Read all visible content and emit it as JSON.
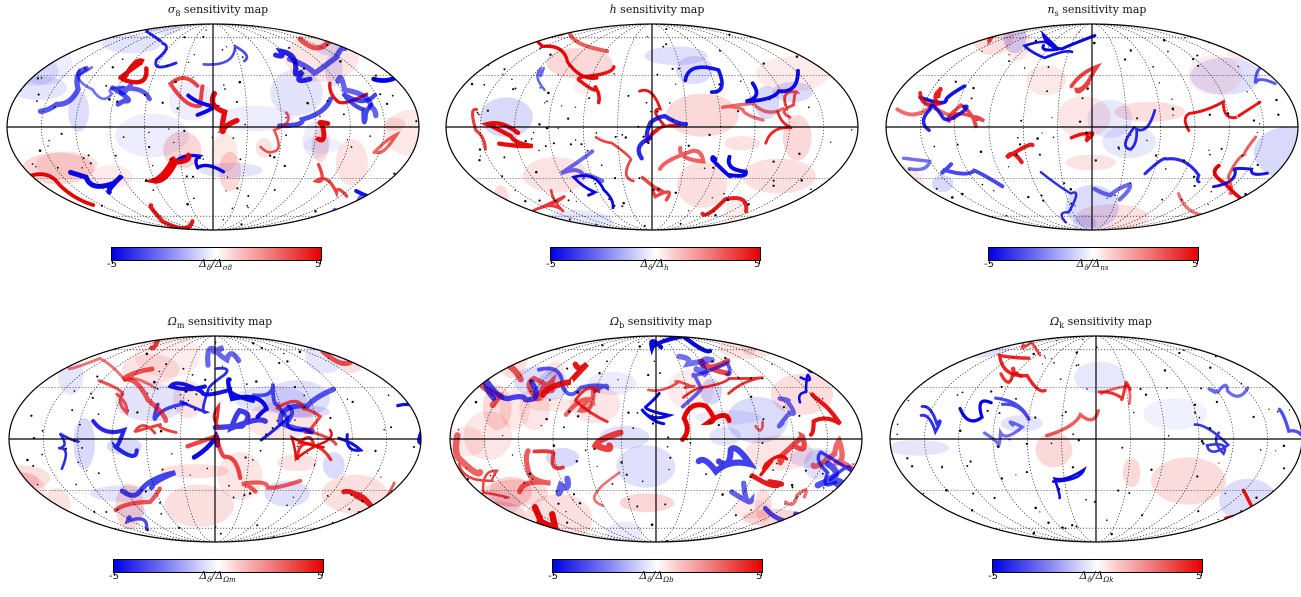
{
  "chart_data": [
    {
      "type": "heatmap",
      "projection": "mollweide",
      "title_symbol": "σ",
      "title_subscript": "8",
      "title_suffix": " sensitivity map",
      "colorbar_label": "Δδ/Δσ8",
      "cbar_num": "Δ",
      "cbar_num_sub": "δ",
      "cbar_den": "Δ",
      "cbar_den_sub": "σ8",
      "cmin": "-5",
      "cmax": "5",
      "colormap": [
        "#0000e6",
        "#ffffff",
        "#e60000"
      ],
      "grid": "on",
      "blob_strength": 0.75
    },
    {
      "type": "heatmap",
      "projection": "mollweide",
      "title_symbol": "h",
      "title_subscript": "",
      "title_suffix": " sensitivity map",
      "colorbar_label": "Δδ/Δh",
      "cbar_num": "Δ",
      "cbar_num_sub": "δ",
      "cbar_den": "Δ",
      "cbar_den_sub": "h",
      "cmin": "-5",
      "cmax": "5",
      "colormap": [
        "#0000e6",
        "#ffffff",
        "#e60000"
      ],
      "grid": "on",
      "blob_strength": 0.45
    },
    {
      "type": "heatmap",
      "projection": "mollweide",
      "title_symbol": "n",
      "title_subscript": "s",
      "title_suffix": " sensitivity map",
      "colorbar_label": "Δδ/Δns",
      "cbar_num": "Δ",
      "cbar_num_sub": "δ",
      "cbar_den": "Δ",
      "cbar_den_sub": "ns",
      "cmin": "-5",
      "cmax": "5",
      "colormap": [
        "#0000e6",
        "#ffffff",
        "#e60000"
      ],
      "grid": "on",
      "blob_strength": 0.5
    },
    {
      "type": "heatmap",
      "projection": "mollweide",
      "title_symbol": "Ω",
      "title_subscript": "m",
      "title_suffix": " sensitivity map",
      "colorbar_label": "Δδ/ΔΩm",
      "cbar_num": "Δ",
      "cbar_num_sub": "δ",
      "cbar_den": "Δ",
      "cbar_den_sub": "Ωm",
      "cmin": "-5",
      "cmax": "5",
      "colormap": [
        "#0000e6",
        "#ffffff",
        "#e60000"
      ],
      "grid": "on",
      "blob_strength": 0.7
    },
    {
      "type": "heatmap",
      "projection": "mollweide",
      "title_symbol": "Ω",
      "title_subscript": "b",
      "title_suffix": " sensitivity map",
      "colorbar_label": "Δδ/ΔΩb",
      "cbar_num": "Δ",
      "cbar_num_sub": "δ",
      "cbar_den": "Δ",
      "cbar_den_sub": "Ωb",
      "cmin": "-5",
      "cmax": "5",
      "colormap": [
        "#0000e6",
        "#ffffff",
        "#e60000"
      ],
      "grid": "on",
      "blob_strength": 1.0
    },
    {
      "type": "heatmap",
      "projection": "mollweide",
      "title_symbol": "Ω",
      "title_subscript": "k",
      "title_suffix": " sensitivity map",
      "colorbar_label": "Δδ/ΔΩk",
      "cbar_num": "Δ",
      "cbar_num_sub": "δ",
      "cbar_den": "Δ",
      "cbar_den_sub": "Ωk",
      "cmin": "-5",
      "cmax": "5",
      "colormap": [
        "#0000e6",
        "#ffffff",
        "#e60000"
      ],
      "grid": "on",
      "blob_strength": 0.25
    }
  ]
}
